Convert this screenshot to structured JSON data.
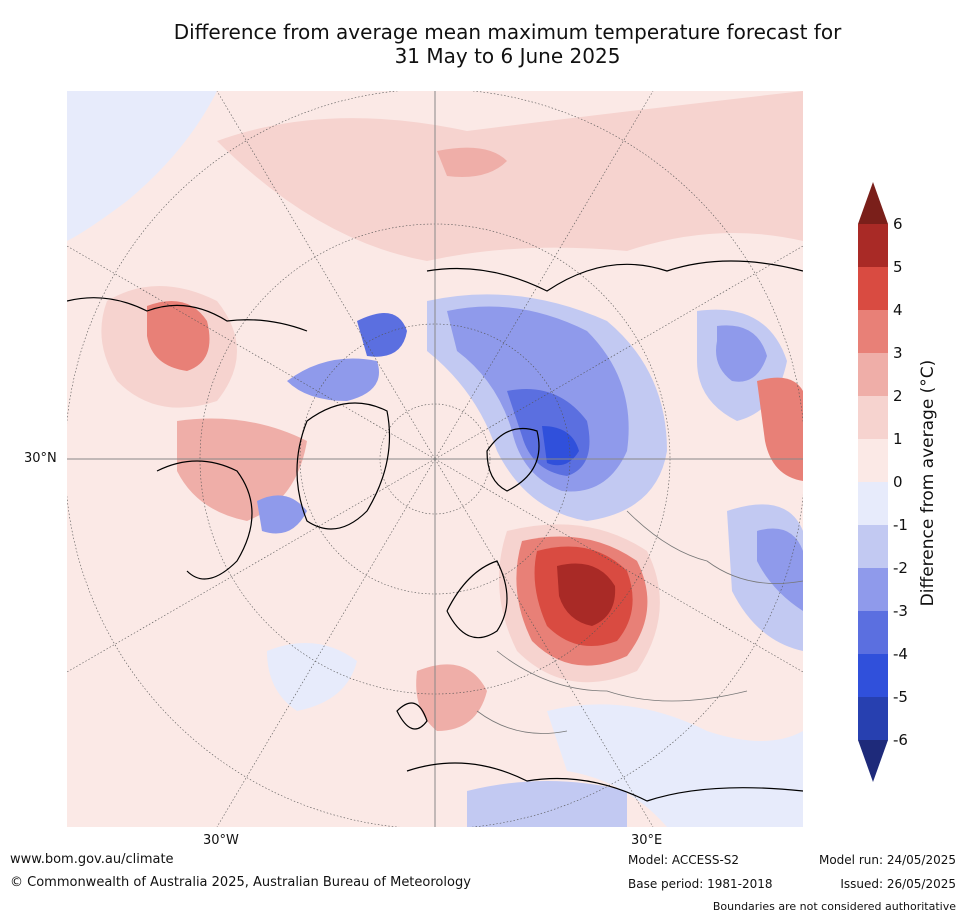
{
  "title": {
    "line1": "Difference from average mean maximum temperature forecast for",
    "line2": "31 May to 6 June 2025"
  },
  "map": {
    "projection": "north-polar-stereographic",
    "lat_label": "30°N",
    "lon_labels": [
      "30°W",
      "30°E"
    ]
  },
  "colorbar": {
    "label": "Difference from average (°C)",
    "ticks": [
      "6",
      "5",
      "4",
      "3",
      "2",
      "1",
      "0",
      "-1",
      "-2",
      "-3",
      "-4",
      "-5",
      "-6"
    ],
    "colors_top_to_bottom": [
      "#7a1f1a",
      "#a92a26",
      "#d94b41",
      "#e88077",
      "#efaea8",
      "#f6d3cf",
      "#fbe9e6",
      "#e7ebfb",
      "#c2c9f2",
      "#8f9aeb",
      "#5b6fe0",
      "#3050db",
      "#2740b0",
      "#1e2a7a"
    ]
  },
  "footer": {
    "website": "www.bom.gov.au/climate",
    "copyright": "© Commonwealth of Australia 2025, Australian Bureau of Meteorology",
    "model": "Model: ACCESS-S2",
    "base_period": "Base period: 1981-2018",
    "model_run": "Model run: 24/05/2025",
    "issued": "Issued: 26/05/2025",
    "disclaimer": "Boundaries are not considered authoritative"
  }
}
